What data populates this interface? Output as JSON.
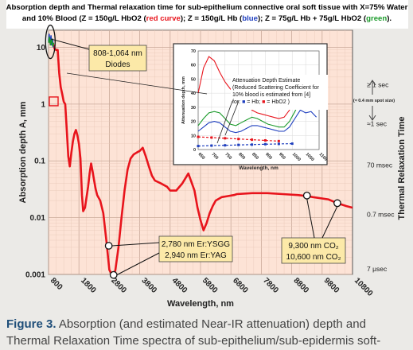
{
  "figure": {
    "title_line1": "Absorption depth and Thermal relaxation time for sub-epithelium connective oral soft tissue with X=75% Water",
    "title_line2_parts": [
      {
        "text": "and 10% Blood (Z = 150g/L HbO2 (",
        "color": "#000000"
      },
      {
        "text": "red curve",
        "color": "#e8141c"
      },
      {
        "text": ");  Z = 150g/L Hb (",
        "color": "#000000"
      },
      {
        "text": "blue",
        "color": "#1f3fbf"
      },
      {
        "text": ");  Z = 75g/L Hb + 75g/L HbO2 (",
        "color": "#000000"
      },
      {
        "text": "green",
        "color": "#1a9a2a"
      },
      {
        "text": ").",
        "color": "#000000"
      }
    ],
    "colors": {
      "plot_bg": "#fde3d6",
      "red": "#e8141c",
      "blue": "#1f3fbf",
      "green": "#1a9a2a",
      "label_box": "#fce9a8"
    }
  },
  "chart_data": [
    {
      "type": "line",
      "scale_y": "log",
      "xlabel": "Wavelength, nm",
      "ylabel": "Absorption depth A, mm",
      "y2label": "Thermal Relaxation Time",
      "xlim": [
        800,
        10800
      ],
      "ylim": [
        0.001,
        20
      ],
      "x_ticks": [
        "800",
        "1800",
        "2800",
        "3800",
        "4800",
        "5800",
        "6800",
        "7800",
        "8800",
        "9800",
        "10800"
      ],
      "y_ticks": [
        {
          "value": 10,
          "label": "10"
        },
        {
          "value": 1,
          "label": "1"
        },
        {
          "value": 0.1,
          "label": "0.1"
        },
        {
          "value": 0.01,
          "label": "0.01"
        },
        {
          "value": 0.001,
          "label": "0.001"
        }
      ],
      "y2_ticks": [
        {
          "value": 2.2,
          "label": "≥ 1 sec"
        },
        {
          "value": 0.45,
          "label": "≈1 sec"
        },
        {
          "value": 0.085,
          "label": "70 msec"
        },
        {
          "value": 0.0115,
          "label": "0.7 msec"
        },
        {
          "value": 0.00125,
          "label": "7 μsec"
        }
      ],
      "y2_note": "(≈ 0.4 mm spot size)",
      "grid": true,
      "series": [
        {
          "color": "#e8141c",
          "x": [
            800,
            900,
            960,
            1000,
            1050,
            1100,
            1150,
            1200,
            1250,
            1300,
            1350,
            1400,
            1450,
            1500,
            1550,
            1600,
            1650,
            1700,
            1750,
            1800,
            1850,
            1900,
            1940,
            2000,
            2100,
            2150,
            2200,
            2250,
            2300,
            2350,
            2400,
            2500,
            2600,
            2700,
            2800,
            2940,
            3000,
            3100,
            3200,
            3300,
            3400,
            3500,
            3600,
            3700,
            3800,
            3900,
            4000,
            4100,
            4200,
            4300,
            4500,
            4700,
            4800,
            5000,
            5200,
            5400,
            5600,
            5700,
            5800,
            5900,
            6000,
            6100,
            6200,
            6300,
            6500,
            6700,
            6900,
            7000,
            7500,
            8000,
            8500,
            9000,
            9300,
            9500,
            10000,
            10300,
            10600,
            10800
          ],
          "values": [
            13,
            12,
            11,
            9.5,
            9.0,
            9.0,
            3.5,
            2.0,
            1.5,
            1.1,
            1.0,
            0.35,
            0.12,
            0.08,
            0.14,
            0.22,
            0.3,
            0.35,
            0.28,
            0.2,
            0.11,
            0.025,
            0.013,
            0.015,
            0.035,
            0.06,
            0.09,
            0.065,
            0.045,
            0.032,
            0.025,
            0.02,
            0.012,
            0.004,
            0.0012,
            0.0009,
            0.0012,
            0.003,
            0.01,
            0.03,
            0.07,
            0.11,
            0.13,
            0.14,
            0.15,
            0.17,
            0.12,
            0.08,
            0.055,
            0.045,
            0.04,
            0.035,
            0.03,
            0.03,
            0.04,
            0.06,
            0.03,
            0.015,
            0.009,
            0.006,
            0.008,
            0.012,
            0.016,
            0.02,
            0.023,
            0.024,
            0.025,
            0.026,
            0.027,
            0.027,
            0.026,
            0.025,
            0.024,
            0.023,
            0.021,
            0.018,
            0.016,
            0.015
          ]
        },
        {
          "color": "#1f3fbf",
          "x": [
            800,
            820,
            850,
            880,
            900,
            930,
            960
          ],
          "values": [
            13,
            17,
            12,
            16,
            11,
            14,
            10
          ]
        },
        {
          "color": "#1a9a2a",
          "x": [
            800,
            830,
            860,
            900,
            940,
            970
          ],
          "values": [
            12,
            15,
            11,
            14,
            10.5,
            12
          ]
        }
      ],
      "annotations": [
        {
          "text_lines": [
            "808-1,064 nm",
            "Diodes"
          ]
        },
        {
          "text_lines": [
            "2,780 nm Er:YSGG",
            "2,940 nm Er:YAG"
          ]
        },
        {
          "text_lines": [
            "9,300 nm CO₂",
            "10,600 nm CO₂"
          ]
        }
      ]
    },
    {
      "type": "line",
      "title_lines": [
        "Attenuation Depth Estimate",
        "(Reduced Scattering Coefficient for",
        "10% blood is estimated from [4]"
      ],
      "for_line": [
        "for: ",
        " = Hb; ",
        " = HbO2 )"
      ],
      "xlabel": "Wavelength, nm",
      "ylabel": "Attenuation depth, mm",
      "xlim": [
        650,
        1100
      ],
      "ylim": [
        0,
        70
      ],
      "x_ticks": [
        "650",
        "700",
        "750",
        "800",
        "850",
        "900",
        "950",
        "1000",
        "1050",
        "1100"
      ],
      "y_ticks": [
        "0",
        "10",
        "20",
        "30",
        "40",
        "50",
        "60",
        "70"
      ],
      "grid": true,
      "series": [
        {
          "color": "#e8141c",
          "x": [
            650,
            670,
            690,
            710,
            730,
            750,
            770,
            790,
            810,
            830,
            850,
            870,
            890,
            910,
            930,
            950,
            970,
            990,
            1010,
            1030,
            1050,
            1070,
            1090
          ],
          "values": [
            40,
            58,
            66,
            63,
            55,
            48,
            43,
            40,
            36,
            32,
            28,
            26,
            25,
            24,
            23,
            22,
            23,
            28,
            38,
            48,
            44,
            45,
            38
          ]
        },
        {
          "color": "#1a9a2a",
          "x": [
            650,
            670,
            690,
            710,
            730,
            750,
            770,
            790,
            810,
            830,
            850,
            870,
            890,
            910,
            930,
            950,
            970,
            990,
            1010,
            1030,
            1050,
            1070,
            1090
          ],
          "values": [
            17,
            22,
            26,
            27,
            26,
            22,
            18,
            17,
            19,
            21,
            23,
            22,
            20,
            18,
            17,
            16,
            16,
            20,
            27,
            35,
            32,
            33,
            29
          ]
        },
        {
          "color": "#1f3fbf",
          "x": [
            650,
            670,
            690,
            710,
            730,
            750,
            770,
            790,
            810,
            830,
            850,
            870,
            890,
            910,
            930,
            950,
            970,
            990,
            1010,
            1030,
            1050,
            1070,
            1090
          ],
          "values": [
            13,
            16,
            19,
            20,
            19,
            16,
            13,
            12,
            13,
            15,
            17,
            17,
            16,
            15,
            14,
            13,
            13,
            16,
            22,
            28,
            26,
            27,
            23
          ]
        },
        {
          "color": "#1f3fbf",
          "dashed": true,
          "x": [
            650,
            700,
            750,
            800,
            850,
            900,
            950,
            1000
          ],
          "values": [
            2.5,
            2.8,
            3.0,
            3.3,
            3.5,
            3.8,
            4.0,
            4.2
          ]
        },
        {
          "color": "#e8141c",
          "dashed": true,
          "x": [
            650,
            700,
            750,
            800,
            850,
            900,
            950
          ],
          "values": [
            9,
            8.5,
            8,
            7.5,
            7,
            6.5,
            6
          ]
        }
      ]
    }
  ],
  "caption": {
    "label": "Figure 3.",
    "text": " Absorption (and estimated Near-IR attenuation) depth and Thermal Relaxation Time spectra of sub-epithelium/sub-epidermis soft-"
  }
}
